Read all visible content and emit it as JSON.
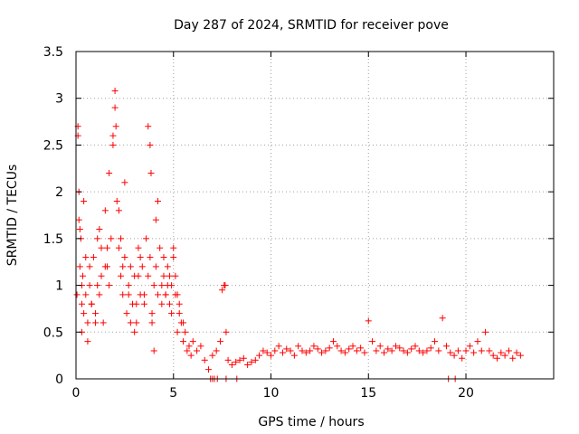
{
  "chart_data": {
    "type": "scatter",
    "title": "Day 287 of 2024, SRMTID for receiver pove",
    "xlabel": "GPS time / hours",
    "ylabel": "SRMTID / TECUs",
    "xlim": [
      0,
      24.5
    ],
    "ylim": [
      0,
      3.5
    ],
    "xticks": [
      0,
      5,
      10,
      15,
      20
    ],
    "xtick_labels": [
      "0",
      "5",
      "10",
      "15",
      "20"
    ],
    "yticks": [
      0,
      0.5,
      1,
      1.5,
      2,
      2.5,
      3,
      3.5
    ],
    "ytick_labels": [
      "0",
      "0.5",
      "1",
      "1.5",
      "2",
      "2.5",
      "3",
      "3.5"
    ],
    "grid": true,
    "marker": "+",
    "color": "#ff0000",
    "series": [
      {
        "name": "SRMTID",
        "x": [
          0.05,
          0.1,
          0.15,
          0.2,
          0.25,
          0.3,
          0.35,
          0.4,
          0.5,
          0.6,
          0.7,
          0.8,
          0.9,
          1.0,
          1.1,
          1.2,
          1.3,
          1.4,
          1.5,
          1.6,
          1.7,
          1.8,
          1.9,
          2.0,
          2.1,
          2.2,
          2.3,
          2.4,
          2.5,
          2.6,
          2.7,
          2.8,
          2.9,
          3.0,
          3.1,
          3.2,
          3.3,
          3.4,
          3.5,
          3.6,
          3.7,
          3.8,
          3.9,
          4.0,
          4.1,
          4.2,
          4.3,
          4.4,
          4.5,
          4.6,
          4.7,
          4.8,
          4.9,
          5.0,
          5.1,
          5.2,
          5.3,
          5.4,
          5.5,
          5.6,
          5.7,
          5.8,
          5.9,
          6.0,
          6.2,
          6.4,
          6.6,
          6.8,
          7.0,
          7.2,
          7.4,
          7.5,
          7.6,
          7.7,
          7.8,
          8.0,
          8.2,
          8.4,
          8.6,
          8.8,
          9.0,
          9.2,
          9.4,
          9.6,
          9.8,
          10.0,
          10.2,
          10.4,
          10.6,
          10.8,
          11.0,
          11.2,
          11.4,
          11.6,
          11.8,
          12.0,
          12.2,
          12.4,
          12.6,
          12.8,
          13.0,
          13.2,
          13.4,
          13.6,
          13.8,
          14.0,
          14.2,
          14.4,
          14.6,
          14.8,
          15.0,
          15.2,
          15.4,
          15.6,
          15.8,
          16.0,
          16.2,
          16.4,
          16.6,
          16.8,
          17.0,
          17.2,
          17.4,
          17.6,
          17.8,
          18.0,
          18.2,
          18.4,
          18.6,
          18.8,
          19.0,
          19.2,
          19.4,
          19.6,
          19.8,
          20.0,
          20.2,
          20.4,
          20.6,
          20.8,
          21.0,
          21.2,
          21.4,
          21.6,
          21.8,
          22.0,
          22.2,
          22.4,
          22.6,
          22.8,
          0.1,
          0.15,
          0.2,
          0.3,
          0.5,
          0.7,
          1.0,
          1.3,
          1.6,
          1.9,
          2.0,
          2.05,
          2.2,
          2.4,
          2.7,
          3.0,
          3.3,
          3.7,
          3.8,
          3.85,
          4.2,
          4.5,
          4.6,
          4.9,
          5.2,
          5.5,
          6.9,
          7.0,
          7.1,
          7.25,
          7.65,
          7.7,
          8.25,
          19.1,
          19.45,
          0.3,
          0.8,
          1.5,
          2.8,
          3.5,
          4.1,
          4.8,
          5.3,
          0.4,
          1.1,
          1.7,
          2.3,
          3.1,
          3.9,
          4.4,
          5.0,
          0.6,
          1.2,
          2.5,
          3.2,
          4.0,
          4.7,
          5.1
        ],
        "y": [
          0.9,
          2.6,
          1.7,
          1.2,
          1.5,
          0.8,
          1.1,
          0.7,
          0.9,
          0.6,
          1.2,
          0.8,
          1.3,
          0.7,
          1.0,
          0.9,
          1.4,
          0.6,
          1.8,
          1.2,
          2.2,
          1.5,
          2.6,
          3.08,
          1.9,
          1.4,
          1.1,
          0.9,
          1.3,
          0.7,
          1.0,
          1.2,
          0.8,
          1.1,
          0.6,
          1.4,
          0.9,
          1.2,
          0.8,
          1.5,
          1.1,
          1.3,
          0.7,
          1.0,
          1.2,
          0.9,
          1.4,
          0.8,
          1.1,
          0.9,
          1.2,
          0.8,
          1.0,
          1.4,
          1.1,
          0.9,
          0.8,
          0.6,
          0.4,
          0.5,
          0.3,
          0.35,
          0.25,
          0.4,
          0.3,
          0.35,
          0.2,
          0.1,
          0.25,
          0.3,
          0.4,
          0.95,
          1.0,
          0.5,
          0.2,
          0.15,
          0.18,
          0.2,
          0.22,
          0.15,
          0.18,
          0.2,
          0.25,
          0.3,
          0.28,
          0.25,
          0.3,
          0.35,
          0.28,
          0.32,
          0.3,
          0.25,
          0.35,
          0.3,
          0.28,
          0.3,
          0.35,
          0.32,
          0.28,
          0.3,
          0.33,
          0.4,
          0.35,
          0.3,
          0.28,
          0.32,
          0.35,
          0.3,
          0.33,
          0.28,
          0.62,
          0.4,
          0.3,
          0.35,
          0.28,
          0.32,
          0.3,
          0.35,
          0.33,
          0.3,
          0.28,
          0.32,
          0.35,
          0.3,
          0.28,
          0.3,
          0.33,
          0.4,
          0.3,
          0.65,
          0.35,
          0.28,
          0.25,
          0.3,
          0.22,
          0.3,
          0.35,
          0.28,
          0.4,
          0.3,
          0.5,
          0.3,
          0.25,
          0.22,
          0.28,
          0.25,
          0.3,
          0.22,
          0.28,
          0.25,
          2.7,
          2.0,
          1.6,
          1.0,
          1.3,
          1.0,
          0.6,
          1.1,
          1.4,
          2.5,
          2.9,
          2.7,
          1.8,
          1.2,
          0.9,
          0.5,
          1.3,
          2.7,
          2.5,
          2.2,
          1.9,
          1.3,
          0.9,
          0.7,
          0.5,
          0.6,
          0.0,
          0.0,
          0.0,
          0.0,
          1.0,
          0.0,
          0.0,
          0.0,
          0.0,
          0.5,
          0.8,
          1.2,
          0.6,
          0.9,
          1.7,
          1.1,
          0.7,
          1.9,
          1.5,
          1.0,
          1.5,
          0.8,
          0.6,
          1.0,
          1.3,
          0.4,
          1.6,
          2.1,
          1.1,
          0.3,
          1.0,
          0.9
        ]
      }
    ]
  }
}
